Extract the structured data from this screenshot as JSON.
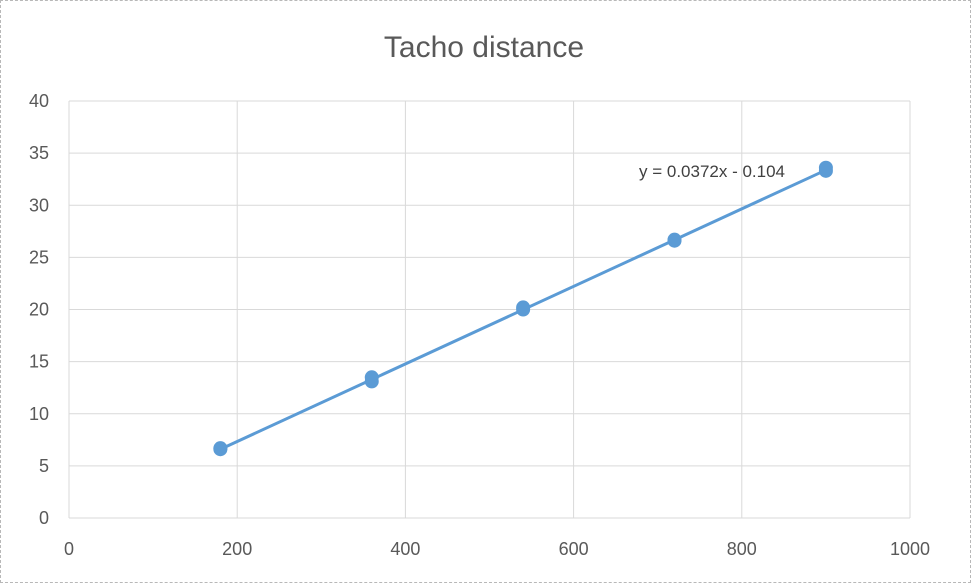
{
  "chart_data": {
    "type": "scatter",
    "title": "Tacho distance",
    "xlabel": "",
    "ylabel": "",
    "xlim": [
      0,
      1000
    ],
    "ylim": [
      0,
      40
    ],
    "xticks": [
      0,
      200,
      400,
      600,
      800,
      1000
    ],
    "yticks": [
      0,
      5,
      10,
      15,
      20,
      25,
      30,
      35,
      40
    ],
    "grid": true,
    "legend": "none",
    "series": [
      {
        "x": [
          180,
          180,
          360,
          360,
          540,
          540,
          720,
          720,
          900,
          900
        ],
        "y": [
          6.6,
          6.7,
          13.1,
          13.5,
          20.0,
          20.2,
          26.6,
          26.7,
          33.3,
          33.6
        ],
        "color": "#5b9bd5"
      }
    ],
    "trendline": {
      "slope": 0.0372,
      "intercept": -0.104,
      "x_range": [
        180,
        900
      ],
      "equation": "y = 0.0372x - 0.104",
      "color": "#5b9bd5"
    }
  }
}
